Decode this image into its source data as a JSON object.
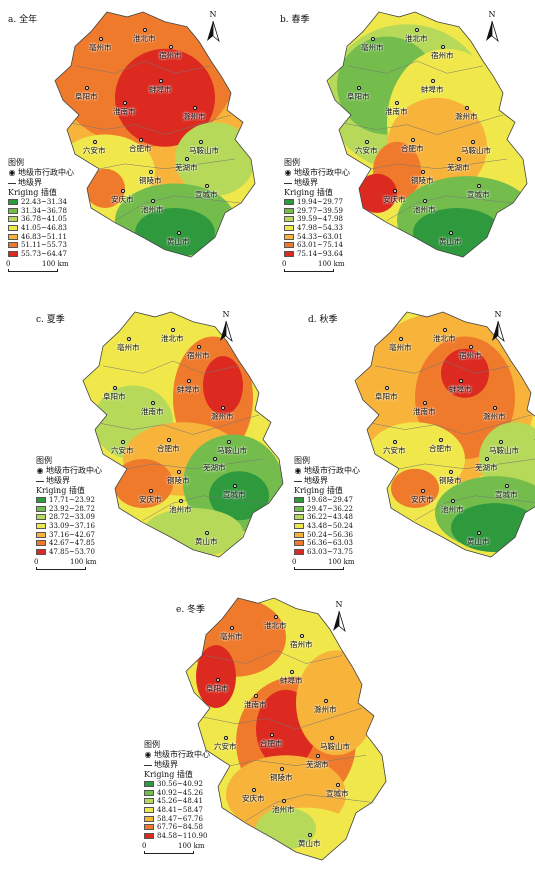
{
  "figure": {
    "legend_heading": "图例",
    "center_label": "地级市行政中心",
    "boundary_label": "地级界",
    "north_label": "N",
    "scale_zero": "0",
    "scale_label": "100 km",
    "symbol_center": "◉"
  },
  "cities": [
    "亳州市",
    "淮北市",
    "宿州市",
    "蚌埠市",
    "阜阳市",
    "淮南市",
    "滁州市",
    "六安市",
    "合肥市",
    "马鞍山市",
    "芜湖市",
    "铜陵市",
    "安庆市",
    "池州市",
    "宣城市",
    "黄山市"
  ],
  "panels": [
    {
      "title": "a. 全年",
      "legend_title": "Kriging 插值",
      "classes": [
        "22.43~31.34",
        "31.34~36.78",
        "36.78~41.05",
        "41.05~46.83",
        "46.83~51.11",
        "51.11~55.73",
        "55.73~64.47"
      ],
      "colors": [
        "#2f9a3d",
        "#74bd4d",
        "#b6d95a",
        "#f0e84a",
        "#f7b33a",
        "#ef7a2c",
        "#dc2a20"
      ]
    },
    {
      "title": "b. 春季",
      "legend_title": "Kriging 插值",
      "classes": [
        "19.94~29.77",
        "29.77~39.59",
        "39.59~47.98",
        "47.98~54.33",
        "54.33~63.01",
        "63.01~75.14",
        "75.14~93.64"
      ],
      "colors": [
        "#2f9a3d",
        "#74bd4d",
        "#b6d95a",
        "#f0e84a",
        "#f7b33a",
        "#ef7a2c",
        "#dc2a20"
      ]
    },
    {
      "title": "c. 夏季",
      "legend_title": "Kriging 插值",
      "classes": [
        "17.71~23.92",
        "23.92~28.72",
        "28.72~33.09",
        "33.09~37.16",
        "37.16~42.67",
        "42.67~47.85",
        "47.85~53.70"
      ],
      "colors": [
        "#2f9a3d",
        "#74bd4d",
        "#b6d95a",
        "#f0e84a",
        "#f7b33a",
        "#ef7a2c",
        "#dc2a20"
      ]
    },
    {
      "title": "d. 秋季",
      "legend_title": "Kriging 插值",
      "classes": [
        "19.68~29.47",
        "29.47~36.22",
        "36.22~43.48",
        "43.48~50.24",
        "50.24~56.36",
        "56.36~63.03",
        "63.03~73.75"
      ],
      "colors": [
        "#2f9a3d",
        "#74bd4d",
        "#b6d95a",
        "#f0e84a",
        "#f7b33a",
        "#ef7a2c",
        "#dc2a20"
      ]
    },
    {
      "title": "e. 冬季",
      "legend_title": "Kriging 插值",
      "classes": [
        "30.56~40.92",
        "40.92~45.26",
        "45.26~48.41",
        "48.41~58.47",
        "58.47~67.76",
        "67.76~84.58",
        "84.58~110.90"
      ],
      "colors": [
        "#2f9a3d",
        "#74bd4d",
        "#b6d95a",
        "#f0e84a",
        "#f7b33a",
        "#ef7a2c",
        "#dc2a20"
      ]
    }
  ]
}
